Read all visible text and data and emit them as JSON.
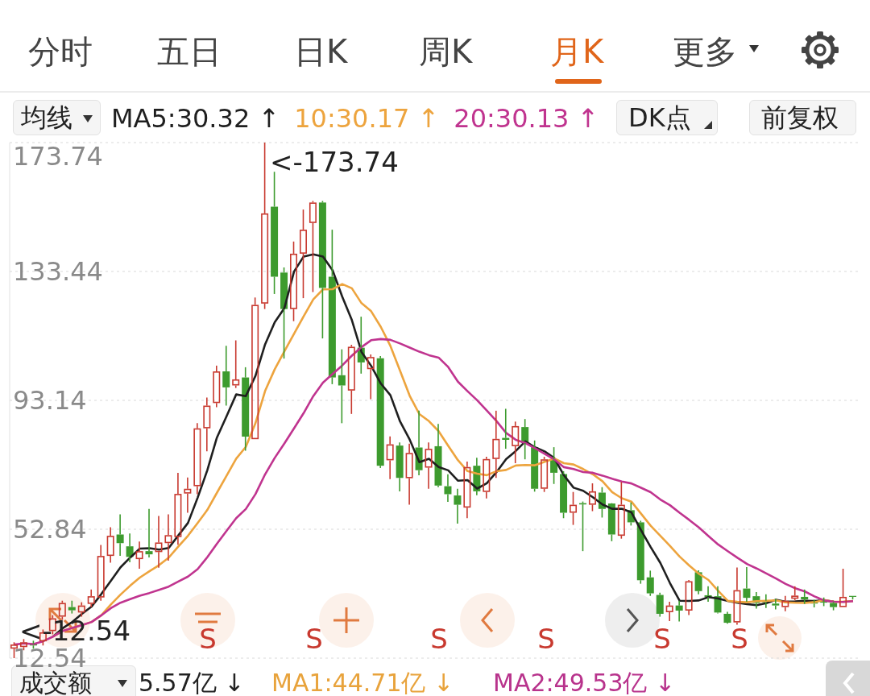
{
  "chart_data": {
    "type": "candlestick",
    "categories": [
      null,
      null,
      null,
      null,
      null,
      null,
      null,
      null,
      null,
      null,
      null,
      null,
      null,
      null,
      null,
      null,
      null,
      null,
      null,
      null,
      null,
      null,
      null,
      null,
      null,
      null,
      null,
      null,
      null,
      null,
      null,
      null,
      null,
      null,
      null,
      null,
      null,
      null,
      null,
      null,
      null,
      null,
      null,
      null,
      null,
      null,
      null,
      null,
      null,
      null,
      null,
      null,
      null,
      null,
      null,
      null,
      null,
      null,
      null,
      null,
      null,
      null,
      null,
      null,
      null,
      null,
      null,
      null,
      null,
      null,
      null,
      null,
      null,
      null,
      null,
      null,
      null,
      null,
      null,
      null,
      null,
      null,
      null,
      null,
      null,
      null,
      null,
      null
    ],
    "ohlc": [
      [
        15.5,
        17.5,
        12.54,
        16.8
      ],
      [
        16,
        18.5,
        15,
        17.5
      ],
      [
        17,
        18,
        15.5,
        16.5
      ],
      [
        17.8,
        21.5,
        16.5,
        20.6
      ],
      [
        21,
        26,
        20,
        25
      ],
      [
        25.5,
        30.5,
        24.5,
        29.8
      ],
      [
        28.5,
        30.5,
        26.5,
        27.5
      ],
      [
        26.8,
        30,
        25.5,
        29
      ],
      [
        29.5,
        34,
        28.5,
        31.9
      ],
      [
        31.5,
        47.9,
        30.5,
        44.5
      ],
      [
        44.5,
        53.5,
        42.4,
        50.8
      ],
      [
        51.2,
        57.5,
        44.5,
        48.5
      ],
      [
        47.5,
        51.5,
        42.5,
        44.2
      ],
      [
        43.5,
        49,
        40.5,
        46
      ],
      [
        46,
        59.2,
        44,
        45
      ],
      [
        45.7,
        57,
        40.8,
        48.7
      ],
      [
        48.5,
        57.5,
        43,
        51
      ],
      [
        50.4,
        70.5,
        48,
        63.9
      ],
      [
        64,
        69,
        58,
        65.5
      ],
      [
        66.3,
        86,
        63.8,
        84.4
      ],
      [
        84.4,
        94,
        77.2,
        91.5
      ],
      [
        92.3,
        104,
        91,
        102.2
      ],
      [
        102.2,
        110.2,
        91.5,
        97.2
      ],
      [
        97.8,
        111.9,
        97,
        99.7
      ],
      [
        100.3,
        103.5,
        77.4,
        81.8
      ],
      [
        81,
        125.3,
        81,
        123
      ],
      [
        123.4,
        173.74,
        121.7,
        151.6
      ],
      [
        153.7,
        164.6,
        126.4,
        131.8
      ],
      [
        133.1,
        134.7,
        106.2,
        121.7
      ],
      [
        121.7,
        142.8,
        117.9,
        139
      ],
      [
        139,
        152.8,
        125.1,
        146.5
      ],
      [
        148.6,
        155.5,
        127,
        155
      ],
      [
        155,
        155.5,
        112.5,
        128.3
      ],
      [
        131.8,
        146.5,
        98.2,
        100.3
      ],
      [
        101,
        109.1,
        86,
        97.8
      ],
      [
        96.2,
        110.5,
        88.9,
        109.9
      ],
      [
        109.6,
        119.3,
        101.5,
        105
      ],
      [
        102.9,
        107.5,
        93.5,
        106.7
      ],
      [
        106.3,
        107,
        72,
        72.7
      ],
      [
        74.4,
        81.9,
        68.5,
        79.4
      ],
      [
        79,
        80,
        64.7,
        68.9
      ],
      [
        68.8,
        79.6,
        60.5,
        76.7
      ],
      [
        78.4,
        89.9,
        69.7,
        71.3
      ],
      [
        72.1,
        80,
        65.5,
        78
      ],
      [
        78.8,
        85.8,
        66,
        66.5
      ],
      [
        66.3,
        70,
        61.4,
        63.8
      ],
      [
        63.4,
        65.5,
        54.6,
        60.5
      ],
      [
        59.6,
        74,
        56.3,
        72.3
      ],
      [
        72.7,
        75.2,
        63.5,
        64.7
      ],
      [
        64.5,
        75.5,
        62.5,
        74.8
      ],
      [
        74.8,
        89.9,
        68.9,
        81.1
      ],
      [
        81.4,
        90.5,
        78,
        80.8
      ],
      [
        78.8,
        86.5,
        73.5,
        85.1
      ],
      [
        84.8,
        87.3,
        74.7,
        79.8
      ],
      [
        78.5,
        80.6,
        64.6,
        65.5
      ],
      [
        65.5,
        75.5,
        64.5,
        74.7
      ],
      [
        74.7,
        78.5,
        67,
        70.5
      ],
      [
        70.1,
        71,
        56.3,
        58
      ],
      [
        58,
        64.5,
        54.2,
        60.5
      ],
      [
        61,
        61.5,
        46,
        60.6
      ],
      [
        60.5,
        67.2,
        58.5,
        64.7
      ],
      [
        64.3,
        66,
        56.5,
        59.2
      ],
      [
        60.9,
        61,
        49.1,
        51.2
      ],
      [
        50.8,
        67.6,
        49.9,
        60.5
      ],
      [
        58.8,
        61.2,
        54,
        55
      ],
      [
        55,
        55.5,
        35.8,
        36.9
      ],
      [
        37.8,
        39.9,
        32,
        32.8
      ],
      [
        32.3,
        33,
        25.5,
        26.4
      ],
      [
        26.9,
        30.2,
        24.1,
        29
      ],
      [
        29,
        30.5,
        24,
        27.4
      ],
      [
        27.4,
        37,
        26,
        36.6
      ],
      [
        39.4,
        40,
        32.5,
        33.5
      ],
      [
        32.2,
        35,
        30.2,
        31.6
      ],
      [
        31.9,
        35,
        26.5,
        26.8
      ],
      [
        26.4,
        27,
        23.3,
        23.6
      ],
      [
        23.7,
        40.9,
        23,
        33.8
      ],
      [
        34.3,
        41,
        30.2,
        31.4
      ],
      [
        31.9,
        33.2,
        28,
        29.8
      ],
      [
        30.5,
        32.5,
        28.2,
        30
      ],
      [
        29.6,
        31.1,
        27.8,
        29
      ],
      [
        28.5,
        32,
        27.2,
        30.5
      ],
      [
        31.1,
        35,
        30.6,
        32.1
      ],
      [
        31.7,
        34,
        29.5,
        30.9
      ],
      [
        29.9,
        30.8,
        28.4,
        29.6
      ],
      [
        30.2,
        31.5,
        28.8,
        29.9
      ],
      [
        29.8,
        30.2,
        27.5,
        28.5
      ],
      [
        28.5,
        40.5,
        28.5,
        31.7
      ],
      [
        32,
        32,
        30.9,
        31.7
      ]
    ],
    "series": [
      {
        "name": "MA5:30.32 ↑",
        "type": "line",
        "color": "#1f1f1f",
        "values": [
          null,
          null,
          null,
          null,
          19.28,
          21.88,
          23.88,
          26.38,
          28.64,
          32.54,
          36.74,
          40.94,
          43.98,
          46.8,
          46.9,
          46.48,
          46.98,
          50.92,
          54.82,
          62.7,
          71.26,
          81.5,
          88.16,
          95,
          94.48,
          100.78,
          110.66,
          117.58,
          121.98,
          133.42,
          138.12,
          138.8,
          138.1,
          133.82,
          125.58,
          118.26,
          108.26,
          103.94,
          98.42,
          94.74,
          86.54,
          80.88,
          73.8,
          74.86,
          72.28,
          71.26,
          68.02,
          68.22,
          65.56,
          67.22,
          70.68,
          74.74,
          77.3,
          80.32,
          78.46,
          77.18,
          75.12,
          69.7,
          65.84,
          64.86,
          62.86,
          60.6,
          59.24,
          59.24,
          58.12,
          52.56,
          47.28,
          42.32,
          36.02,
          30.5,
          30.44,
          30.58,
          31.62,
          31.18,
          30.42,
          29.86,
          29.44,
          29.08,
          29.72,
          30.8,
          30.14,
          30.28,
          30.5,
          30.42,
          30.6,
          30.2,
          null,
          null
        ]
      },
      {
        "name": "10:30.17 ↑",
        "type": "line",
        "color": "#eda43e",
        "values": [
          null,
          null,
          null,
          null,
          19.28,
          21.03,
          21.96,
          22.84,
          23.84,
          25.91,
          29.31,
          32.41,
          35.18,
          37.72,
          39.72,
          41.61,
          43.96,
          47.45,
          50.81,
          54.8,
          58.87,
          64.24,
          69.54,
          74.91,
          78.59,
          86.02,
          96.08,
          102.87,
          108.49,
          113.95,
          119.45,
          124.73,
          127.84,
          127.9,
          129.5,
          128.19,
          123.53,
          121.02,
          116.12,
          110.16,
          102.4,
          94.57,
          88.87,
          86.64,
          83.51,
          78.9,
          74.45,
          71.01,
          70.21,
          69.75,
          70.97,
          71.38,
          72.76,
          72.94,
          72.84,
          73.93,
          74.93,
          73.5,
          73.08,
          71.66,
          70.02,
          67.86,
          64.47,
          62.54,
          61.49,
          57.71,
          53.94,
          50.78,
          47.63,
          44.31,
          41.5,
          38.93,
          36.97,
          33.6,
          30.46,
          30.15,
          30.01,
          30.35,
          30.45,
          30.61,
          30.0,
          29.86,
          29.79,
          30.07,
          30.7,
          30.17,
          30.2,
          30.39
        ]
      },
      {
        "name": "20:30.13 ↑",
        "type": "line",
        "color": "#c0348f",
        "values": [
          16.8,
          17.15,
          16.93,
          17.85,
          19.28,
          21.03,
          21.96,
          22.84,
          23.84,
          25.91,
          28.17,
          29.87,
          30.97,
          32.04,
          32.91,
          33.89,
          34.9,
          36.51,
          38.04,
          40.36,
          44.09,
          48.33,
          52.36,
          56.32,
          59.16,
          63.82,
          70.02,
          75.16,
          79.65,
          84.38,
          89.16,
          94.49,
          98.69,
          101.41,
          104.05,
          107.11,
          109.81,
          111.95,
          112.31,
          112.06,
          110.93,
          109.65,
          108.36,
          107.27,
          106.51,
          103.55,
          98.99,
          96.02,
          93.17,
          89.96,
          86.69,
          82.98,
          80.82,
          79.79,
          78.18,
          76.42,
          74.69,
          72.26,
          71.65,
          70.71,
          70.5,
          69.62,
          68.62,
          67.74,
          67.17,
          65.82,
          64.44,
          62.14,
          60.36,
          57.99,
          55.76,
          53.4,
          50.72,
          48.07,
          45.98,
          43.93,
          41.98,
          40.57,
          39.04,
          37.46,
          35.75,
          34.4,
          33.38,
          31.84,
          30.58,
          30.16,
          30.11,
          30.37
        ]
      }
    ],
    "ylim": [
      12.54,
      173.74
    ],
    "yticks": [
      12.54,
      52.84,
      93.14,
      133.44,
      173.74
    ],
    "grid": "y",
    "legend": "top left",
    "annotations": [
      "分时",
      "五日",
      "日K",
      "周K",
      "月K",
      "更多",
      "均线",
      "DK点",
      "前复权",
      "成交额",
      "5.57亿 ↓",
      "MA1:44.71亿 ↓",
      "MA2:49.53亿 ↓",
      "<-173.74",
      "<-12.54",
      "S",
      "S",
      "S",
      "S",
      "S",
      "S"
    ]
  }
}
